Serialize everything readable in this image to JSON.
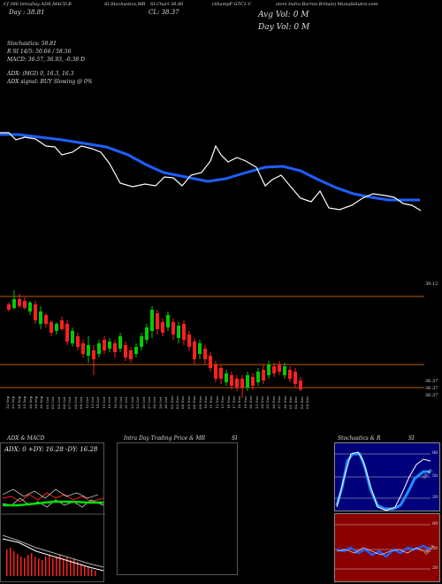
{
  "header": {
    "line1_left": "Cf 386 IntraDay ADX,MACD,B",
    "line1_mid1": "SI,Stochastics,MR",
    "line1_mid2": "SI Chart 38.80",
    "line1_mid3": "(ShampP GTC1 C",
    "line1_right": "olors Indra Barron Britain) MunafaSutra.com",
    "line2_day": "Day : 38.81",
    "line2_cl": "CL: 38.37",
    "avg_vol": "Avg Vol: 0   M",
    "day_vol": "Day Vol: 0   M"
  },
  "indicators": {
    "stoch": "Stochastics: 58.81",
    "rsi": "R          SI 14/5: 50.66  / 58.56",
    "macd": "MACD: 36.57, 36.93, -0.38  D",
    "adx": "ADX:                              (MGI) 0, 16.3,  16.3",
    "adx_signal": "ADX  signal:                                 BUY Slowing @ 0%"
  },
  "price_labels": {
    "top": "39.12",
    "bottom1": "36.37",
    "bottom2": "36.37",
    "bottom3": "36.37"
  },
  "dates": [
    "22 Sep",
    "23 Sep",
    "24 Sep",
    "25 Sep",
    "28 Sep",
    "29 Sep",
    "30 Sep",
    "01 Oct",
    "02 Oct",
    "05 Oct",
    "06 Oct",
    "07 Oct",
    "08 Oct",
    "09 Oct",
    "12 Oct",
    "13 Oct",
    "14 Oct",
    "15 Oct",
    "16 Oct",
    "19 Oct",
    "20 Oct",
    "21 Oct",
    "22 Oct",
    "23 Oct",
    "26 Oct",
    "27 Oct",
    "28 Oct",
    "29 Oct",
    "30 Oct",
    "02 Nov",
    "03 Nov",
    "04 Nov",
    "05 Nov",
    "06 Nov",
    "09 Nov",
    "10 Nov",
    "11 Nov",
    "12 Nov",
    "13 Nov",
    "16 Nov",
    "17 Nov",
    "18 Nov",
    "19 Nov",
    "20 Nov",
    "23 Nov",
    "24 Nov",
    "25 Nov",
    "26 Nov",
    "27 Nov",
    "30 Nov",
    "01 Dec",
    "02 Dec",
    "03 Dec",
    "04 Dec"
  ],
  "bottom": {
    "adx_title": "ADX  & MACD",
    "adx_values": "ADX: 0  +DY: 16.28  -DY: 16.28",
    "intra_title": "Intra Day Trading Price  & MR",
    "intra_si": "SI",
    "stoch_title": "Stochastics & R",
    "stoch_si": "SI",
    "stoch_levels": [
      "80",
      "50",
      "20"
    ],
    "rsi_levels": [
      "80",
      "50",
      "20"
    ],
    "stoch_value": "58.81",
    "rsi_value": "50.66"
  },
  "colors": {
    "ma": "#1e5fff",
    "up": "#00cc00",
    "down": "#ff2020",
    "price": "#ffffff",
    "level": "#b85c00"
  }
}
